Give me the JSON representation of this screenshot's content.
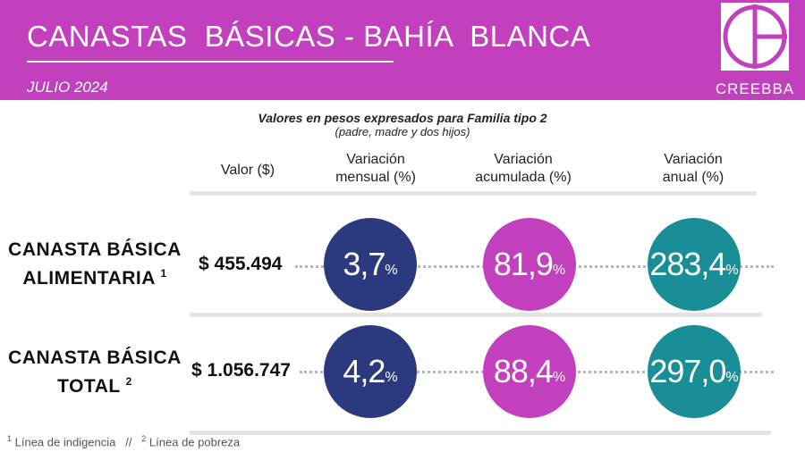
{
  "header": {
    "title": "CANASTAS  BÁSICAS - BAHÍA  BLANCA",
    "date": "JULIO 2024",
    "logo_text": "CREEBBA",
    "logo_icon": "creebba-logo-icon"
  },
  "subtitle": {
    "line1": "Valores en pesos expresados para Familia tipo 2",
    "line2": "(padre, madre y dos hijos)"
  },
  "columns": {
    "valor": "Valor ($)",
    "mensual_1": "Variación",
    "mensual_2": "mensual (%)",
    "acumulada_1": "Variación",
    "acumulada_2": "acumulada (%)",
    "anual_1": "Variación",
    "anual_2": "anual (%)"
  },
  "rows": [
    {
      "label_1": "CANASTA BÁSICA",
      "label_2": "ALIMENTARIA",
      "note": "1",
      "valor": "$ 455.494",
      "mensual": "3,7",
      "acumulada": "81,9",
      "anual": "283,4"
    },
    {
      "label_1": "CANASTA BÁSICA",
      "label_2": "TOTAL",
      "note": "2",
      "valor": "$ 1.056.747",
      "mensual": "4,2",
      "acumulada": "88,4",
      "anual": "297,0"
    }
  ],
  "percent_sign": "%",
  "footnotes": {
    "n1": "1",
    "t1": " Línea de indigencia",
    "sep": "   //   ",
    "n2": "2",
    "t2": " Línea de pobreza"
  },
  "colors": {
    "header_bg": "#c23fbe",
    "mensual": "#2b3a7e",
    "acumulada": "#c23fbe",
    "anual": "#1a8e96"
  }
}
